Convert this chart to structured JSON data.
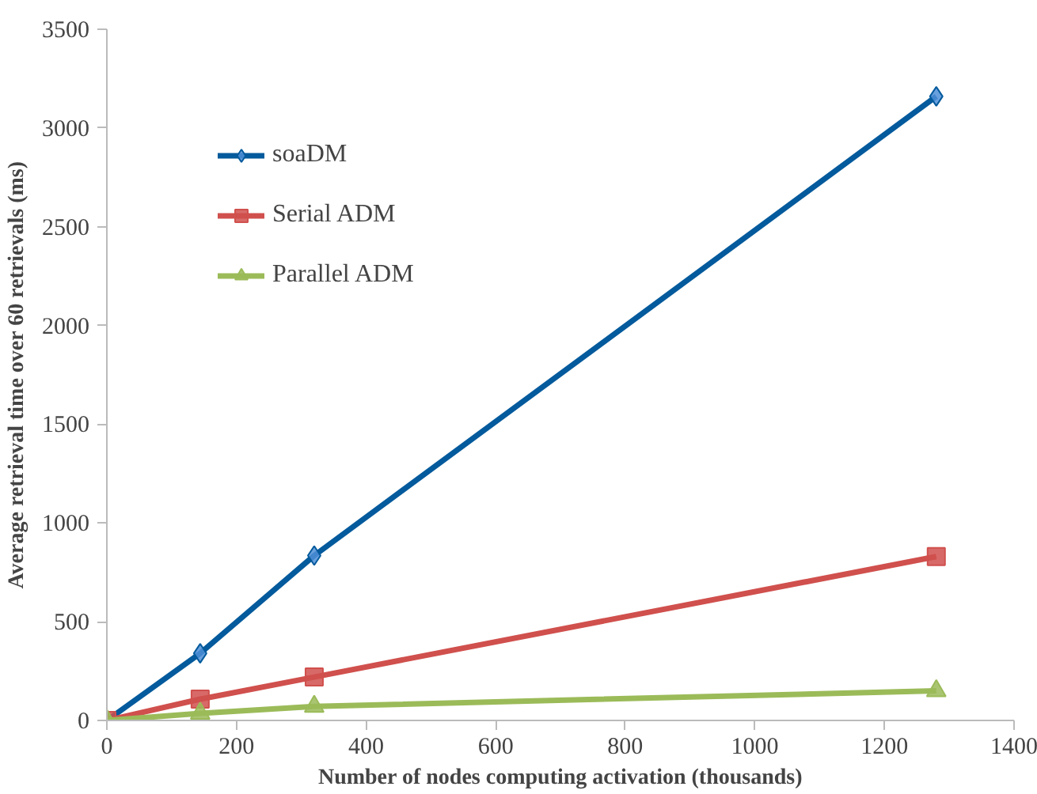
{
  "chart_data": {
    "type": "line",
    "xlabel": "Number of nodes computing activation (thousands)",
    "ylabel": "Average retrieval time over 60 retrievals (ms)",
    "x": [
      0,
      144,
      320,
      1280
    ],
    "series": [
      {
        "name": "soaDM",
        "color": "#035a9c",
        "marker": "diamond",
        "values": [
          0,
          340,
          835,
          3160
        ]
      },
      {
        "name": "Serial ADM",
        "color": "#d0504d",
        "marker": "square",
        "values": [
          0,
          108,
          220,
          830
        ]
      },
      {
        "name": "Parallel ADM",
        "color": "#9bbb59",
        "marker": "triangle",
        "values": [
          0,
          36,
          71,
          150
        ]
      }
    ],
    "xlim": [
      0,
      1400
    ],
    "xticks": [
      0,
      200,
      400,
      600,
      800,
      1000,
      1200,
      1400
    ],
    "ylim": [
      0,
      3500
    ],
    "yticks": [
      0,
      500,
      1000,
      1500,
      2000,
      2500,
      3000,
      3500
    ],
    "grid": false,
    "legend": "top left",
    "line_style": "solid"
  }
}
